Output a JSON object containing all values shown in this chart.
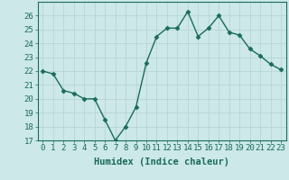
{
  "x": [
    0,
    1,
    2,
    3,
    4,
    5,
    6,
    7,
    8,
    9,
    10,
    11,
    12,
    13,
    14,
    15,
    16,
    17,
    18,
    19,
    20,
    21,
    22,
    23
  ],
  "y": [
    22,
    21.8,
    20.6,
    20.4,
    20.0,
    20.0,
    18.5,
    17.0,
    18.0,
    19.4,
    22.6,
    24.5,
    25.1,
    25.1,
    26.3,
    24.5,
    25.1,
    26.0,
    24.8,
    24.6,
    23.6,
    23.1,
    22.5,
    22.1
  ],
  "line_color": "#1a6b5a",
  "marker": "D",
  "markersize": 2.5,
  "linewidth": 1.0,
  "bg_color": "#cce8e8",
  "grid_color": "#b8d4d4",
  "xlabel": "Humidex (Indice chaleur)",
  "xlabel_fontsize": 7.5,
  "tick_fontsize": 6.5,
  "xlim": [
    -0.5,
    23.5
  ],
  "ylim": [
    17,
    27
  ],
  "yticks": [
    17,
    18,
    19,
    20,
    21,
    22,
    23,
    24,
    25,
    26
  ],
  "xticks": [
    0,
    1,
    2,
    3,
    4,
    5,
    6,
    7,
    8,
    9,
    10,
    11,
    12,
    13,
    14,
    15,
    16,
    17,
    18,
    19,
    20,
    21,
    22,
    23
  ]
}
